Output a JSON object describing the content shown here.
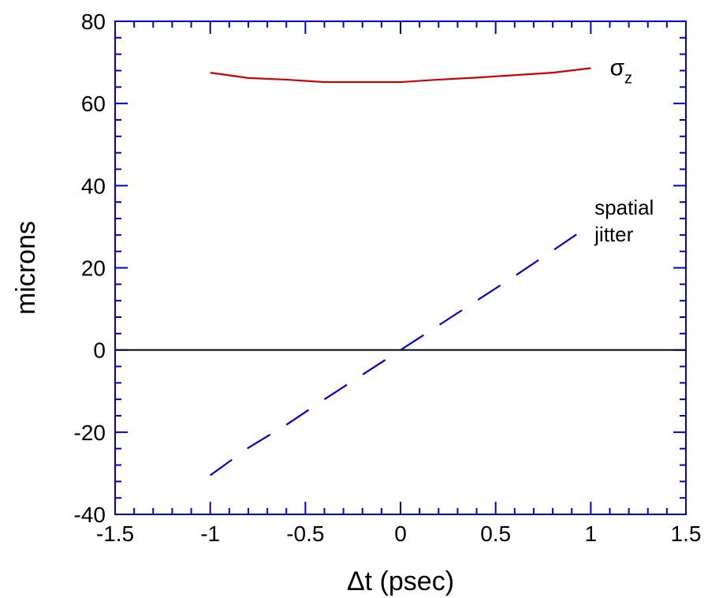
{
  "chart_data": {
    "type": "line",
    "xlabel": "Δt (psec)",
    "ylabel": "microns",
    "xlim": [
      -1.5,
      1.5
    ],
    "ylim": [
      -40,
      80
    ],
    "x_ticks": [
      -1.5,
      -1,
      -0.5,
      0,
      0.5,
      1,
      1.5
    ],
    "x_tick_labels": [
      "-1.5",
      "-1",
      "-0.5",
      "0",
      "0.5",
      "1",
      "1.5"
    ],
    "y_ticks": [
      -40,
      -20,
      0,
      20,
      40,
      60,
      80
    ],
    "y_tick_labels": [
      "-40",
      "-20",
      "0",
      "20",
      "40",
      "60",
      "80"
    ],
    "grid": false,
    "axis_color": "#0000cc",
    "series": [
      {
        "name": "σz",
        "color": "#cc0000",
        "dash": "solid",
        "x": [
          -1,
          -0.8,
          -0.6,
          -0.4,
          -0.2,
          0,
          0.2,
          0.4,
          0.6,
          0.8,
          1
        ],
        "y": [
          67.5,
          66.2,
          65.8,
          65.2,
          65.2,
          65.2,
          65.8,
          66.3,
          66.9,
          67.5,
          68.6
        ]
      },
      {
        "name": "spatial jitter",
        "color": "#0000cc",
        "dash": "dashed",
        "x": [
          -1,
          -0.8,
          -0.6,
          -0.4,
          -0.2,
          0,
          0.2,
          0.4,
          0.6,
          0.8,
          1
        ],
        "y": [
          -30.5,
          -23.8,
          -18.2,
          -12.0,
          -6.0,
          0,
          6.0,
          12.0,
          18.0,
          24.2,
          30.5
        ]
      }
    ],
    "zero_line": {
      "y": 0,
      "color": "#000000"
    },
    "annotations": [
      {
        "symbol": "σ",
        "subscript": "z",
        "x": 1.1,
        "y": 68
      },
      {
        "lines": [
          "spatial",
          "jitter"
        ],
        "x": 1.02,
        "y": 31
      }
    ]
  }
}
